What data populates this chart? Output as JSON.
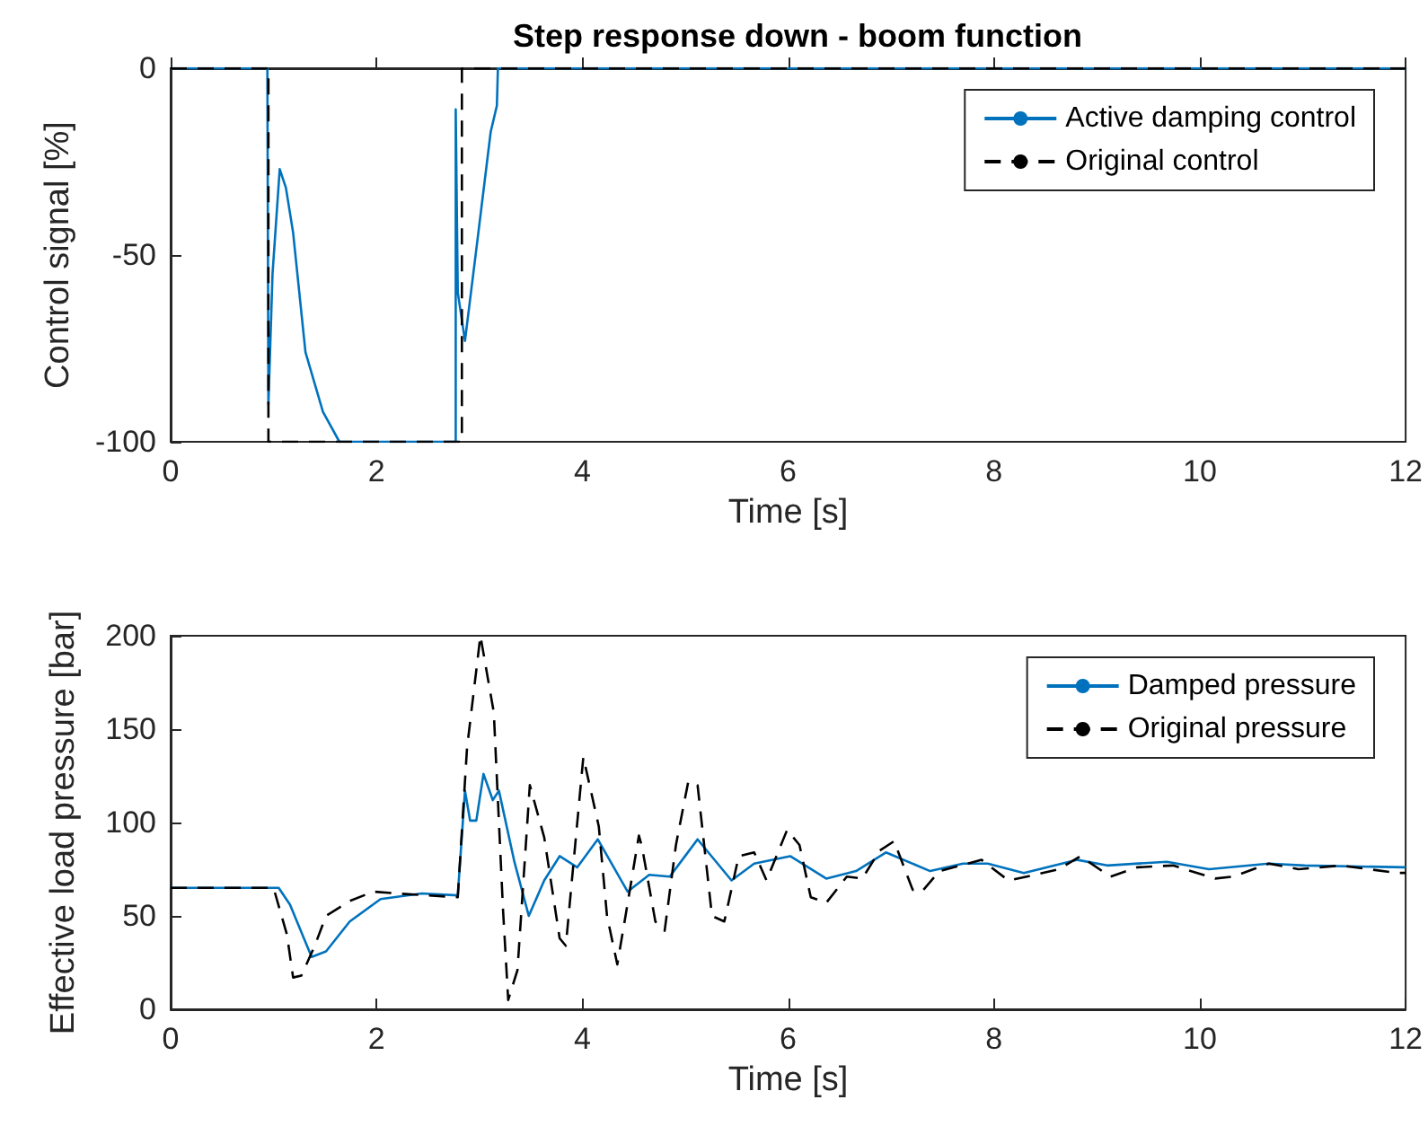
{
  "chart_data": [
    {
      "type": "line",
      "title": "Step response down - boom function",
      "xlabel": "Time [s]",
      "ylabel": "Control signal [%]",
      "xlim": [
        0,
        12
      ],
      "xticks": [
        0,
        2,
        4,
        6,
        8,
        10,
        12
      ],
      "ylim": [
        -100,
        0
      ],
      "yticks": [
        -100,
        -50,
        0
      ],
      "grid": false,
      "legend": "top right",
      "marker": "none",
      "series": [
        {
          "name": "Active damping control",
          "color": "#0072bd",
          "line_style": "solid",
          "x": [
            0,
            0.94,
            0.95,
            0.99,
            1.06,
            1.12,
            1.19,
            1.31,
            1.48,
            1.64,
            2.77,
            2.77,
            2.79,
            2.86,
            2.99,
            3.11,
            3.17,
            3.18,
            12
          ],
          "values": [
            0,
            0,
            -90,
            -55,
            -27,
            -32,
            -44,
            -76,
            -92,
            -100,
            -100,
            -11,
            -60,
            -73,
            -44,
            -17,
            -10,
            0,
            0
          ]
        },
        {
          "name": "Original control",
          "color": "#000000",
          "line_style": "dashed",
          "x": [
            0,
            0.95,
            0.95,
            2.83,
            2.83,
            12
          ],
          "values": [
            0,
            0,
            -100,
            -100,
            0,
            0
          ]
        }
      ]
    },
    {
      "type": "line",
      "xlabel": "Time [s]",
      "ylabel": "Effective load pressure [bar]",
      "xlim": [
        0,
        12
      ],
      "xticks": [
        0,
        2,
        4,
        6,
        8,
        10,
        12
      ],
      "ylim": [
        0,
        200
      ],
      "yticks": [
        0,
        50,
        100,
        150,
        200
      ],
      "grid": false,
      "legend": "top right",
      "marker": "none",
      "series": [
        {
          "name": "Damped pressure",
          "color": "#0072bd",
          "line_style": "solid",
          "x": [
            0,
            1.05,
            1.16,
            1.37,
            1.51,
            1.74,
            2.04,
            2.44,
            2.79,
            2.83,
            2.86,
            2.91,
            2.97,
            3.04,
            3.13,
            3.19,
            3.34,
            3.48,
            3.63,
            3.78,
            3.95,
            4.15,
            4.44,
            4.65,
            4.85,
            5.12,
            5.45,
            5.67,
            6.02,
            6.37,
            6.66,
            6.95,
            7.38,
            7.7,
            7.94,
            8.29,
            8.81,
            9.1,
            9.68,
            10.09,
            10.67,
            11.02,
            12
          ],
          "values": [
            65,
            65,
            56,
            28,
            31,
            47,
            59,
            62,
            61,
            93,
            117,
            101,
            101,
            126,
            112,
            117,
            79,
            50,
            69,
            82,
            76,
            91,
            63,
            72,
            71,
            91,
            69,
            78,
            82,
            70,
            74,
            84,
            74,
            78,
            78,
            73,
            80,
            77,
            79,
            75,
            78,
            77,
            76
          ]
        },
        {
          "name": "Original pressure",
          "color": "#000000",
          "line_style": "dashed",
          "x": [
            0,
            1.0,
            1.13,
            1.19,
            1.27,
            1.4,
            1.51,
            1.74,
            1.97,
            2.2,
            2.79,
            2.88,
            3.01,
            3.14,
            3.23,
            3.28,
            3.37,
            3.49,
            3.63,
            3.78,
            3.84,
            4.01,
            4.16,
            4.24,
            4.34,
            4.42,
            4.55,
            4.58,
            4.71,
            4.8,
            4.91,
            5.03,
            5.12,
            5.26,
            5.38,
            5.52,
            5.67,
            5.79,
            5.99,
            6.11,
            6.22,
            6.37,
            6.57,
            6.72,
            6.89,
            7.03,
            7.21,
            7.3,
            7.47,
            7.88,
            8.14,
            8.4,
            8.63,
            8.84,
            9.13,
            9.39,
            9.74,
            10.15,
            10.32,
            10.67,
            10.96,
            11.37,
            11.92,
            12
          ],
          "values": [
            65,
            65,
            40,
            17,
            18,
            34,
            50,
            58,
            63,
            62,
            60,
            140,
            200,
            159,
            53,
            5,
            21,
            120,
            92,
            38,
            34,
            135,
            98,
            50,
            24,
            50,
            93,
            87,
            47,
            42,
            88,
            122,
            120,
            50,
            47,
            82,
            84,
            69,
            96,
            88,
            60,
            57,
            71,
            70,
            85,
            90,
            64,
            63,
            74,
            80,
            69,
            72,
            75,
            82,
            71,
            76,
            77,
            70,
            71,
            78,
            75,
            77,
            73,
            73
          ]
        }
      ]
    }
  ]
}
